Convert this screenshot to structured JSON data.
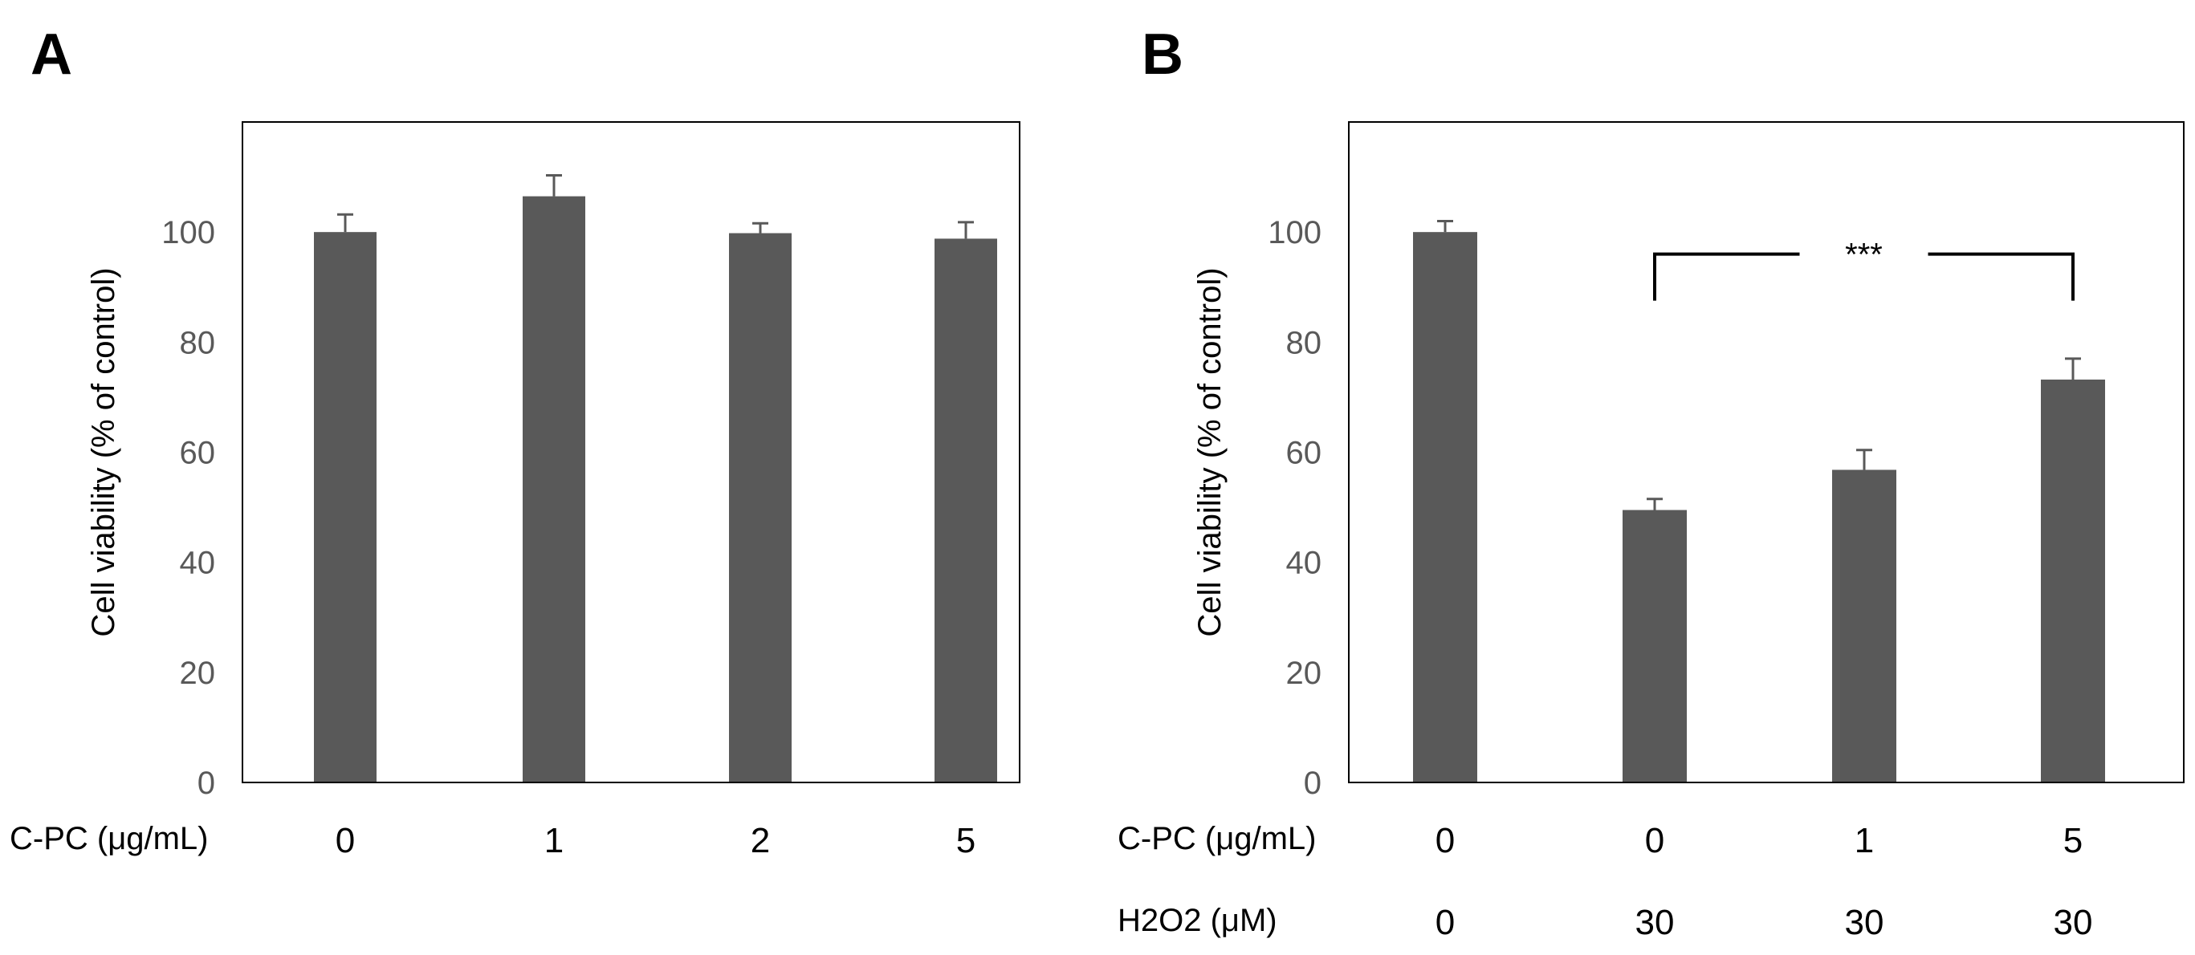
{
  "colors": {
    "bar": "#595959",
    "error": "#595959",
    "axis": "#000000"
  },
  "chart_data": [
    {
      "type": "bar",
      "panel": "A",
      "ylabel": "Cell viability (% of control)",
      "ylim": [
        0,
        120
      ],
      "yticks": [
        0,
        20,
        40,
        60,
        80,
        100
      ],
      "categories": [
        "0",
        "1",
        "2",
        "5"
      ],
      "values": [
        100,
        106.5,
        99.8,
        98.8
      ],
      "errors": [
        3.2,
        3.8,
        1.8,
        3.0
      ],
      "x_rows": [
        {
          "label": "C-PC (μg/mL)",
          "values": [
            "0",
            "1",
            "2",
            "5"
          ]
        }
      ]
    },
    {
      "type": "bar",
      "panel": "B",
      "ylabel": "Cell viability (% of control)",
      "ylim": [
        0,
        120
      ],
      "yticks": [
        0,
        20,
        40,
        60,
        80,
        100
      ],
      "categories": [
        "0 / 0",
        "0 / 30",
        "1 / 30",
        "5 / 30"
      ],
      "values": [
        100,
        49.5,
        56.8,
        73.2
      ],
      "errors": [
        2.0,
        2.0,
        3.6,
        3.8
      ],
      "x_rows": [
        {
          "label": "C-PC (μg/mL)",
          "values": [
            "0",
            "0",
            "1",
            "5"
          ]
        },
        {
          "label": "H2O2 (μM)",
          "values": [
            "0",
            "30",
            "30",
            "30"
          ]
        }
      ],
      "annotations": [
        {
          "text": "***",
          "from_index": 1,
          "to_index": 3,
          "y": 96
        }
      ]
    }
  ]
}
